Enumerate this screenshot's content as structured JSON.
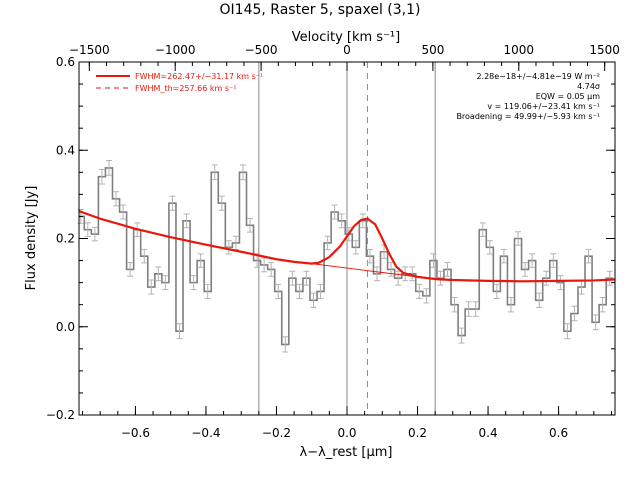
{
  "chart_data": {
    "type": "line",
    "title": "OI145, Raster 5, spaxel (3,1)",
    "xlabel": "λ−λ_rest [μm]",
    "ylabel": "Flux density [Jy]",
    "x2label": "Velocity [km s⁻¹]",
    "xlim": [
      -0.76,
      0.76
    ],
    "ylim": [
      -0.2,
      0.6
    ],
    "x2lim": [
      -1560,
      1560
    ],
    "xticks": [
      "−0.6",
      "−0.4",
      "−0.2",
      "0.0",
      "0.2",
      "0.4",
      "0.6"
    ],
    "xtick_values": [
      -0.6,
      -0.4,
      -0.2,
      0.0,
      0.2,
      0.4,
      0.6
    ],
    "yticks": [
      "−0.2",
      "0.0",
      "0.2",
      "0.4",
      "0.6"
    ],
    "ytick_values": [
      -0.2,
      0.0,
      0.2,
      0.4,
      0.6
    ],
    "x2ticks": [
      "−1500",
      "−1000",
      "−500",
      "0",
      "500",
      "1000",
      "1500"
    ],
    "x2tick_values": [
      -1500,
      -1000,
      -500,
      0,
      500,
      1000,
      1500
    ],
    "vlines_solid": [
      -0.25,
      0.0,
      0.25
    ],
    "vline_dashed": 0.058,
    "colors": {
      "data": "#7f7f7f",
      "fit": "#e8170c",
      "axes": "#000000"
    },
    "series": [
      {
        "name": "data",
        "x": [
          -0.755,
          -0.735,
          -0.715,
          -0.695,
          -0.675,
          -0.655,
          -0.635,
          -0.615,
          -0.595,
          -0.575,
          -0.555,
          -0.535,
          -0.515,
          -0.495,
          -0.475,
          -0.455,
          -0.435,
          -0.415,
          -0.395,
          -0.375,
          -0.355,
          -0.335,
          -0.315,
          -0.295,
          -0.275,
          -0.255,
          -0.235,
          -0.215,
          -0.195,
          -0.175,
          -0.155,
          -0.135,
          -0.115,
          -0.095,
          -0.075,
          -0.055,
          -0.035,
          -0.015,
          0.005,
          0.025,
          0.045,
          0.065,
          0.085,
          0.105,
          0.125,
          0.145,
          0.165,
          0.185,
          0.205,
          0.225,
          0.245,
          0.265,
          0.285,
          0.305,
          0.325,
          0.345,
          0.365,
          0.385,
          0.405,
          0.425,
          0.445,
          0.465,
          0.485,
          0.505,
          0.525,
          0.545,
          0.565,
          0.585,
          0.605,
          0.625,
          0.645,
          0.665,
          0.685,
          0.705,
          0.725,
          0.745
        ],
        "y": [
          0.25,
          0.22,
          0.21,
          0.34,
          0.36,
          0.29,
          0.26,
          0.13,
          0.22,
          0.16,
          0.09,
          0.12,
          0.1,
          0.28,
          -0.01,
          0.24,
          0.1,
          0.15,
          0.08,
          0.35,
          0.28,
          0.18,
          0.19,
          0.35,
          0.23,
          0.15,
          0.14,
          0.13,
          0.08,
          -0.04,
          0.11,
          0.08,
          0.11,
          0.06,
          0.08,
          0.19,
          0.26,
          0.24,
          0.21,
          0.18,
          0.24,
          0.16,
          0.12,
          0.17,
          0.13,
          0.11,
          0.12,
          0.12,
          0.08,
          0.07,
          0.15,
          0.11,
          0.13,
          0.05,
          -0.02,
          0.04,
          0.04,
          0.22,
          0.18,
          0.08,
          0.16,
          0.05,
          0.2,
          0.13,
          0.15,
          0.06,
          0.11,
          0.15,
          0.1,
          -0.01,
          0.03,
          0.09,
          0.16,
          0.01,
          0.05,
          0.11
        ],
        "err": 0.015
      },
      {
        "name": "FWHM=262.47+/−31.17 km s⁻¹",
        "x": [
          -0.76,
          -0.7,
          -0.6,
          -0.5,
          -0.4,
          -0.3,
          -0.2,
          -0.15,
          -0.1,
          -0.08,
          -0.05,
          -0.02,
          0.0,
          0.02,
          0.04,
          0.058,
          0.08,
          0.1,
          0.12,
          0.14,
          0.16,
          0.2,
          0.25,
          0.3,
          0.4,
          0.5,
          0.6,
          0.7,
          0.76
        ],
        "y": [
          0.262,
          0.245,
          0.222,
          0.203,
          0.186,
          0.17,
          0.153,
          0.147,
          0.143,
          0.145,
          0.158,
          0.182,
          0.205,
          0.228,
          0.242,
          0.245,
          0.232,
          0.2,
          0.165,
          0.136,
          0.122,
          0.113,
          0.108,
          0.106,
          0.104,
          0.103,
          0.104,
          0.105,
          0.107
        ]
      },
      {
        "name": "FWHM_th=257.66 km s⁻¹",
        "x": [
          -0.1,
          0.0,
          0.1,
          0.2,
          0.3
        ],
        "y": [
          0.143,
          0.133,
          0.123,
          0.113,
          0.106
        ]
      }
    ],
    "legend": [
      {
        "label": "FWHM=262.47+/−31.17 km s⁻¹",
        "style": "solid"
      },
      {
        "label": "FWHM_th=257.66 km s⁻¹",
        "style": "dashed"
      }
    ],
    "legend_position": "top-left",
    "annotations": [
      "2.28e−18+/−4.81e−19 W m⁻²",
      "4.74σ",
      "EQW = 0.05 μm",
      "v = 119.06+/−23.41 km s⁻¹",
      "Broadening = 49.99+/−5.93 km s⁻¹"
    ],
    "annotation_position": "top-right"
  }
}
